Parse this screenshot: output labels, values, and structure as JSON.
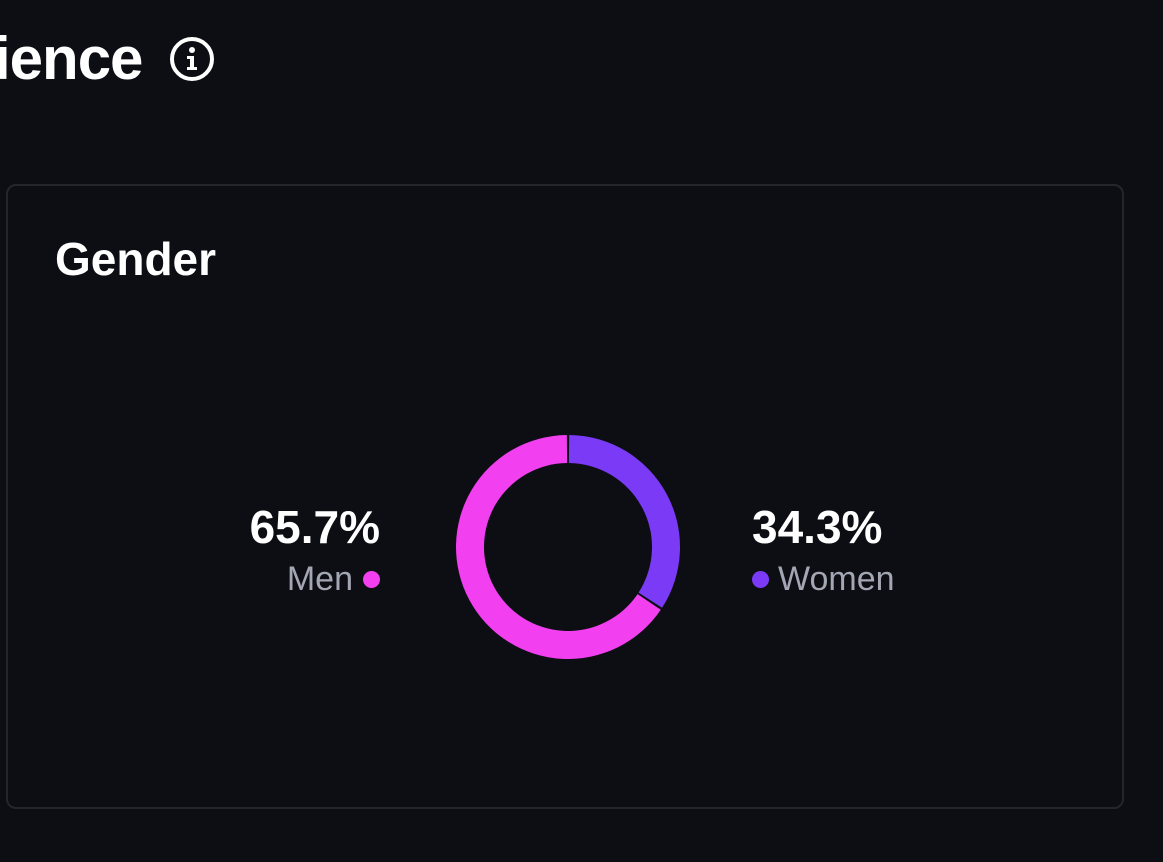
{
  "header": {
    "title": "ience"
  },
  "card": {
    "title": "Gender"
  },
  "colors": {
    "men": "#f23ff0",
    "women": "#7b3bf6",
    "background": "#0d0e14"
  },
  "chart_data": {
    "type": "pie",
    "title": "Gender",
    "series": [
      {
        "name": "Men",
        "value": 65.7,
        "label": "65.7%",
        "color": "#f23ff0"
      },
      {
        "name": "Women",
        "value": 34.3,
        "label": "34.3%",
        "color": "#7b3bf6"
      }
    ]
  },
  "stats": {
    "men": {
      "value": "65.7%",
      "label": "Men"
    },
    "women": {
      "value": "34.3%",
      "label": "Women"
    }
  }
}
